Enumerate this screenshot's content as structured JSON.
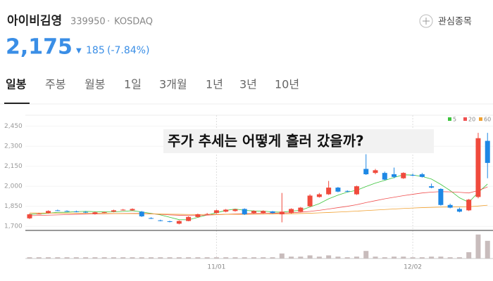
{
  "header": {
    "name": "아이비김영",
    "code": "339950",
    "separator": "·",
    "market": "KOSDAQ",
    "price": "2,175",
    "change_arrow": "▼",
    "change": "185",
    "change_pct": "(-7.84%)",
    "watch_button": "관심종목"
  },
  "tabs": [
    "일봉",
    "주봉",
    "월봉",
    "1일",
    "3개월",
    "1년",
    "3년",
    "10년"
  ],
  "chart_data": {
    "type": "candlestick",
    "title": "주가 추세는 어떻게 흘러 갔을까?",
    "x": [
      null,
      null,
      null,
      null,
      null,
      null,
      null,
      null,
      null,
      null,
      null,
      null,
      null,
      null,
      null,
      null,
      null,
      null,
      null,
      null,
      "11/01",
      null,
      null,
      null,
      null,
      null,
      null,
      null,
      null,
      null,
      null,
      null,
      null,
      null,
      null,
      null,
      null,
      null,
      null,
      null,
      null,
      "12/02",
      null,
      null,
      null,
      null,
      null,
      null,
      null,
      null
    ],
    "open": [
      1760,
      1795,
      1800,
      1820,
      1815,
      1812,
      1808,
      1792,
      1805,
      1810,
      1822,
      1820,
      1810,
      1762,
      1745,
      1738,
      1720,
      1740,
      1770,
      1790,
      1800,
      1810,
      1815,
      1830,
      1800,
      1800,
      1812,
      1790,
      1800,
      1810,
      1850,
      1920,
      1940,
      1990,
      1965,
      1940,
      2130,
      2100,
      2100,
      2090,
      2060,
      2085,
      2090,
      2000,
      1980,
      1860,
      1830,
      1820,
      1920,
      2340
    ],
    "high": [
      1795,
      1800,
      1820,
      1825,
      1820,
      1818,
      1815,
      1810,
      1810,
      1825,
      1830,
      1835,
      1815,
      1768,
      1750,
      1742,
      1745,
      1775,
      1795,
      1800,
      1825,
      1830,
      1830,
      1835,
      1820,
      1820,
      1815,
      1950,
      1835,
      1845,
      1940,
      1950,
      2040,
      1995,
      1970,
      2005,
      2240,
      2130,
      2110,
      2140,
      2105,
      2095,
      2100,
      2020,
      1985,
      1870,
      1840,
      1905,
      2400,
      2400
    ],
    "low": [
      1755,
      1790,
      1795,
      1815,
      1810,
      1805,
      1800,
      1788,
      1800,
      1805,
      1818,
      1815,
      1770,
      1755,
      1738,
      1730,
      1715,
      1738,
      1765,
      1785,
      1795,
      1805,
      1810,
      1785,
      1795,
      1795,
      1795,
      1730,
      1795,
      1805,
      1845,
      1915,
      1935,
      1955,
      1955,
      1935,
      2085,
      2090,
      2045,
      2060,
      2055,
      2075,
      2065,
      1985,
      1855,
      1835,
      1805,
      1815,
      1910,
      2060
    ],
    "close": [
      1790,
      1795,
      1815,
      1818,
      1813,
      1810,
      1805,
      1805,
      1806,
      1820,
      1825,
      1830,
      1775,
      1760,
      1740,
      1735,
      1740,
      1770,
      1790,
      1792,
      1820,
      1825,
      1828,
      1790,
      1815,
      1815,
      1800,
      1810,
      1830,
      1840,
      1930,
      1940,
      1990,
      1960,
      1960,
      2000,
      2090,
      2120,
      2050,
      2070,
      2100,
      2080,
      2070,
      1990,
      1860,
      1840,
      1810,
      1900,
      2360,
      2175
    ],
    "volume": [
      2,
      2,
      2,
      2,
      2,
      2,
      2,
      2,
      2,
      2,
      2,
      2,
      2,
      2,
      2,
      2,
      2,
      2,
      2,
      2,
      2,
      2,
      2,
      2,
      2,
      2,
      2,
      8,
      3,
      3,
      5,
      3,
      5,
      3,
      2,
      3,
      12,
      3,
      2,
      3,
      3,
      2,
      2,
      3,
      3,
      2,
      2,
      10,
      38,
      28
    ],
    "volume_ylim": [
      0,
      40
    ],
    "up_color": "#f04a3c",
    "down_color": "#1e88e5",
    "series": [
      {
        "name": "5",
        "color": "#3cc43c",
        "values": [
          1790,
          1793,
          1798,
          1805,
          1806,
          1810,
          1812,
          1810,
          1808,
          1809,
          1812,
          1817,
          1808,
          1797,
          1786,
          1768,
          1750,
          1749,
          1767,
          1785,
          1802,
          1819,
          1830,
          1820,
          1815,
          1814,
          1808,
          1806,
          1814,
          1820,
          1845,
          1870,
          1906,
          1934,
          1956,
          1970,
          1998,
          2024,
          2044,
          2066,
          2086,
          2084,
          2074,
          2054,
          2014,
          1968,
          1914,
          1880,
          1954,
          2017
        ]
      },
      {
        "name": "20",
        "color": "#f05050",
        "values": [
          1780,
          1782,
          1784,
          1786,
          1788,
          1790,
          1792,
          1793,
          1794,
          1795,
          1796,
          1797,
          1796,
          1794,
          1790,
          1786,
          1783,
          1781,
          1782,
          1784,
          1787,
          1790,
          1793,
          1795,
          1796,
          1797,
          1798,
          1800,
          1802,
          1806,
          1812,
          1820,
          1830,
          1840,
          1850,
          1862,
          1878,
          1892,
          1906,
          1918,
          1930,
          1940,
          1950,
          1956,
          1960,
          1958,
          1955,
          1950,
          1968,
          1995
        ]
      },
      {
        "name": "60",
        "color": "#f0a030",
        "values": [
          1800,
          1800,
          1799,
          1799,
          1798,
          1798,
          1797,
          1797,
          1796,
          1796,
          1795,
          1795,
          1794,
          1793,
          1792,
          1791,
          1790,
          1789,
          1789,
          1789,
          1789,
          1790,
          1790,
          1790,
          1791,
          1791,
          1792,
          1793,
          1794,
          1796,
          1798,
          1801,
          1804,
          1807,
          1810,
          1814,
          1818,
          1822,
          1826,
          1830,
          1834,
          1837,
          1840,
          1842,
          1844,
          1845,
          1846,
          1847,
          1852,
          1858
        ]
      }
    ],
    "ylim": [
      1680,
      2490
    ],
    "yticks": [
      {
        "value": 1700,
        "label": "1,700"
      },
      {
        "value": 1850,
        "label": "1,850"
      },
      {
        "value": 2000,
        "label": "2,000"
      },
      {
        "value": 2150,
        "label": "2,150"
      },
      {
        "value": 2300,
        "label": "2,300"
      },
      {
        "value": 2450,
        "label": "2,450"
      }
    ]
  }
}
